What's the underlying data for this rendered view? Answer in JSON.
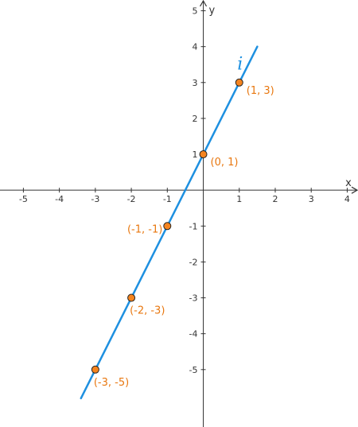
{
  "chart_data": {
    "type": "line",
    "title": "",
    "xlabel": "x",
    "ylabel": "y",
    "xlim": [
      -5.65,
      4.3
    ],
    "ylim": [
      -6.6,
      5.3
    ],
    "grid": false,
    "x_ticks": [
      -5,
      -4,
      -3,
      -2,
      -1,
      1,
      2,
      3,
      4
    ],
    "y_ticks": [
      5,
      4,
      3,
      2,
      1,
      -1,
      -2,
      -3,
      -4,
      -5
    ],
    "x_tick_labels": [
      "-5",
      "-4",
      "-3",
      "-2",
      "-1",
      "1",
      "2",
      "3",
      "4"
    ],
    "y_tick_labels": [
      "5",
      "4",
      "3",
      "2",
      "1",
      "-1",
      "-2",
      "-3",
      "-4",
      "-5"
    ],
    "series": [
      {
        "name": "i",
        "equation": "y = 2x + 1",
        "slope": 2,
        "intercept": 1,
        "x_range": [
          -3.4,
          1.5
        ],
        "color": "#1e90e0"
      }
    ],
    "points": [
      {
        "x": 1,
        "y": 3,
        "label": "(1, 3)",
        "label_side": "right"
      },
      {
        "x": 0,
        "y": 1,
        "label": "(0, 1)",
        "label_side": "right"
      },
      {
        "x": -1,
        "y": -1,
        "label": "(-1, -1)",
        "label_side": "left"
      },
      {
        "x": -2,
        "y": -3,
        "label": "(-2, -3)",
        "label_side": "below"
      },
      {
        "x": -3,
        "y": -5,
        "label": "(-3, -5)",
        "label_side": "below"
      }
    ],
    "point_color": "#f5841f",
    "label_color": "#e8770f",
    "axis_color": "#333333"
  }
}
